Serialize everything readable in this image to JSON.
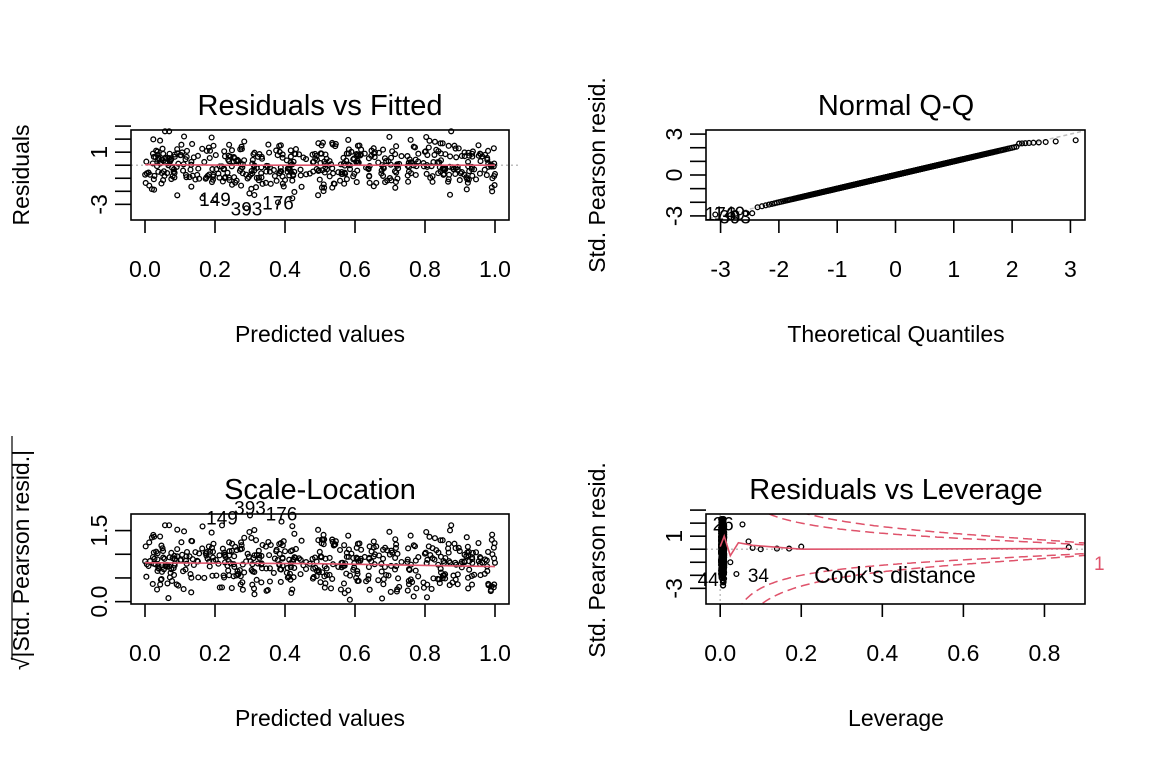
{
  "chart_data": [
    {
      "type": "scatter",
      "title": "Residuals vs Fitted",
      "xlabel": "Predicted values",
      "ylabel": "Residuals",
      "xlim": [
        -0.04,
        1.04
      ],
      "ylim": [
        -4.2,
        2.7
      ],
      "xticks": [
        0.0,
        0.2,
        0.4,
        0.6,
        0.8,
        1.0
      ],
      "xtick_labels": [
        "0.0",
        "0.2",
        "0.4",
        "0.6",
        "0.8",
        "1.0"
      ],
      "yticks": [
        -3,
        -2,
        -1,
        0,
        1,
        2,
        3
      ],
      "ytick_labels": [
        "-3",
        "",
        "",
        "",
        "1",
        "",
        ""
      ],
      "reference_line": {
        "y": 0,
        "style": "dotted",
        "color": "#BEBEBE"
      },
      "smooth_line": {
        "x": [
          0.0,
          0.25,
          0.5,
          0.75,
          1.0
        ],
        "y": [
          0.05,
          0.0,
          0.0,
          0.0,
          0.0
        ],
        "color": "#DF536B"
      },
      "labeled_points": [
        {
          "label": "149",
          "x": 0.2,
          "y": -2.6
        },
        {
          "label": "393",
          "x": 0.29,
          "y": -3.3
        },
        {
          "label": "176",
          "x": 0.38,
          "y": -2.85
        }
      ],
      "n_points": 500,
      "seed": 11,
      "point_model": "uniform x in [0,1]; residual ~ N(0,1) clipped to [-3.3,2.6]"
    },
    {
      "type": "scatter",
      "title": "Normal Q-Q",
      "xlabel": "Theoretical Quantiles",
      "ylabel": "Std. Pearson resid.",
      "xlim": [
        -3.25,
        3.25
      ],
      "ylim": [
        -3.3,
        3.3
      ],
      "xticks": [
        -3,
        -2,
        -1,
        0,
        1,
        2,
        3
      ],
      "xtick_labels": [
        "-3",
        "-2",
        "-1",
        "0",
        "1",
        "2",
        "3"
      ],
      "yticks": [
        -3,
        -2,
        -1,
        0,
        1,
        2,
        3
      ],
      "ytick_labels": [
        "-3",
        "",
        "",
        "0",
        "",
        "",
        "3"
      ],
      "reference_line": {
        "slope": 1,
        "intercept": 0,
        "style": "dashed",
        "color": "#BEBEBE"
      },
      "labeled_points": [
        {
          "label": "176",
          "x": -3.0,
          "y": -2.9
        },
        {
          "label": "149",
          "x": -2.85,
          "y": -2.85
        },
        {
          "label": "393",
          "x": -2.75,
          "y": -3.1
        }
      ],
      "n_points": 500,
      "upper_tail": {
        "plateau_y": 2.55,
        "start_x": 2.1,
        "max_x": 3.1
      },
      "lower_tail": {
        "plateau_y": -2.9,
        "end_x": -2.4
      }
    },
    {
      "type": "scatter",
      "title": "Scale-Location",
      "xlabel": "Predicted values",
      "ylabel": "√|Std. Pearson resid.|",
      "xlim": [
        -0.04,
        1.04
      ],
      "ylim": [
        -0.05,
        1.85
      ],
      "xticks": [
        0.0,
        0.2,
        0.4,
        0.6,
        0.8,
        1.0
      ],
      "xtick_labels": [
        "0.0",
        "0.2",
        "0.4",
        "0.6",
        "0.8",
        "1.0"
      ],
      "yticks": [
        0.0,
        0.5,
        1.0,
        1.5
      ],
      "ytick_labels": [
        "0.0",
        "",
        "",
        "1.5"
      ],
      "smooth_line": {
        "x": [
          0.0,
          0.5,
          1.0
        ],
        "y": [
          0.82,
          0.8,
          0.74
        ],
        "color": "#DF536B"
      },
      "labeled_points": [
        {
          "label": "149",
          "x": 0.22,
          "y": 1.61
        },
        {
          "label": "393",
          "x": 0.3,
          "y": 1.82
        },
        {
          "label": "176",
          "x": 0.39,
          "y": 1.69
        }
      ],
      "n_points": 500,
      "seed": 11
    },
    {
      "type": "scatter",
      "title": "Residuals vs Leverage",
      "xlabel": "Leverage",
      "ylabel": "Std. Pearson resid.",
      "xlim": [
        -0.035,
        0.9
      ],
      "ylim": [
        -4.2,
        2.7
      ],
      "xticks": [
        0.0,
        0.2,
        0.4,
        0.6,
        0.8
      ],
      "xtick_labels": [
        "0.0",
        "0.2",
        "0.4",
        "0.6",
        "0.8"
      ],
      "yticks": [
        -3,
        -2,
        -1,
        0,
        1,
        2,
        3
      ],
      "ytick_labels": [
        "-3",
        "",
        "",
        "",
        "1",
        "",
        ""
      ],
      "reference_lines": [
        {
          "y": 0,
          "style": "dotted",
          "color": "#BEBEBE"
        },
        {
          "x": 0,
          "style": "dotted",
          "color": "#BEBEBE"
        }
      ],
      "cooks_distance_levels": [
        0.5,
        1
      ],
      "cooks_label": "Cook's distance",
      "cooks_level_label": "1",
      "high_leverage_points": [
        {
          "x": 0.055,
          "y": 1.9
        },
        {
          "x": 0.07,
          "y": 0.6
        },
        {
          "x": 0.1,
          "y": 0.0
        },
        {
          "x": 0.08,
          "y": 0.1
        },
        {
          "x": 0.14,
          "y": 0.05
        },
        {
          "x": 0.17,
          "y": 0.05
        },
        {
          "x": 0.2,
          "y": 0.2
        },
        {
          "x": 0.86,
          "y": 0.15
        },
        {
          "x": 0.04,
          "y": -1.9
        },
        {
          "x": 0.025,
          "y": -1.0
        }
      ],
      "labeled_points": [
        {
          "label": "26",
          "x": 0.0,
          "y": 1.9
        },
        {
          "label": "34",
          "x": 0.04,
          "y": -1.9
        },
        {
          "label": "44",
          "x": 0.0,
          "y": -2.2
        }
      ],
      "smooth_line": {
        "x": [
          0.0,
          0.01,
          0.025,
          0.045,
          0.08,
          0.2,
          0.86
        ],
        "y": [
          0.2,
          1.0,
          -0.5,
          0.5,
          0.3,
          0.0,
          0.05
        ],
        "color": "#DF536B"
      }
    }
  ]
}
